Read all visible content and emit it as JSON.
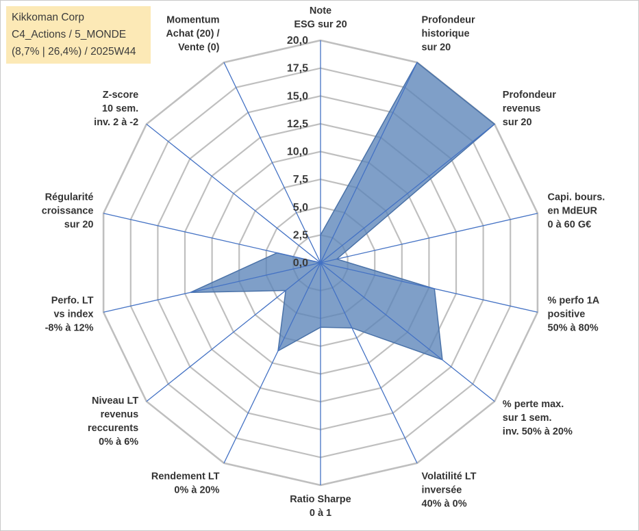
{
  "header": {
    "company": "Kikkoman Corp",
    "category": "C4_Actions / 5_MONDE",
    "stats": "(8,7% | 26,4%) / 2025W44"
  },
  "colors": {
    "fill": "#5b84b8",
    "stroke": "#4a72a8",
    "spoke": "#4472c4",
    "grid": "#bfbfbf"
  },
  "chart_data": {
    "type": "radar",
    "title": "",
    "rmin": 0,
    "rmax": 20,
    "ticks": [
      "0,0",
      "2,5",
      "5,0",
      "7,5",
      "10,0",
      "12,5",
      "15,0",
      "17,5",
      "20,0"
    ],
    "axes": [
      {
        "label": [
          "Note",
          "ESG sur 20"
        ],
        "value": 2.5
      },
      {
        "label": [
          "Profondeur",
          "historique",
          "sur 20"
        ],
        "value": 20
      },
      {
        "label": [
          "Profondeur",
          "revenus",
          "sur 20"
        ],
        "value": 20
      },
      {
        "label": [
          "Capi. bours.",
          "en MdEUR",
          "0 à 60 G€"
        ],
        "value": 1.5
      },
      {
        "label": [
          "% perfo 1A",
          "positive",
          "50% à 80%"
        ],
        "value": 10.5
      },
      {
        "label": [
          "% perte max.",
          "sur 1 sem.",
          "inv. 50% à 20%"
        ],
        "value": 14
      },
      {
        "label": [
          "Volatilité LT",
          "inversée",
          "40% à 0%"
        ],
        "value": 6.5
      },
      {
        "label": [
          "Ratio Sharpe",
          "0 à 1"
        ],
        "value": 5.8
      },
      {
        "label": [
          "Rendement LT",
          "0% à 20%"
        ],
        "value": 8.8
      },
      {
        "label": [
          "Niveau LT",
          "revenus",
          "reccurents",
          "0% à 6%"
        ],
        "value": 4
      },
      {
        "label": [
          "Perfo. LT",
          "vs index",
          "-8% à 12%"
        ],
        "value": 12
      },
      {
        "label": [
          "Régularité",
          "croissance",
          "sur 20"
        ],
        "value": 4
      },
      {
        "label": [
          "Z-score",
          "10 sem.",
          "inv. 2 à -2"
        ],
        "value": 0
      },
      {
        "label": [
          "Momentum",
          "Achat (20) /",
          "Vente (0)"
        ],
        "value": 0
      }
    ]
  }
}
